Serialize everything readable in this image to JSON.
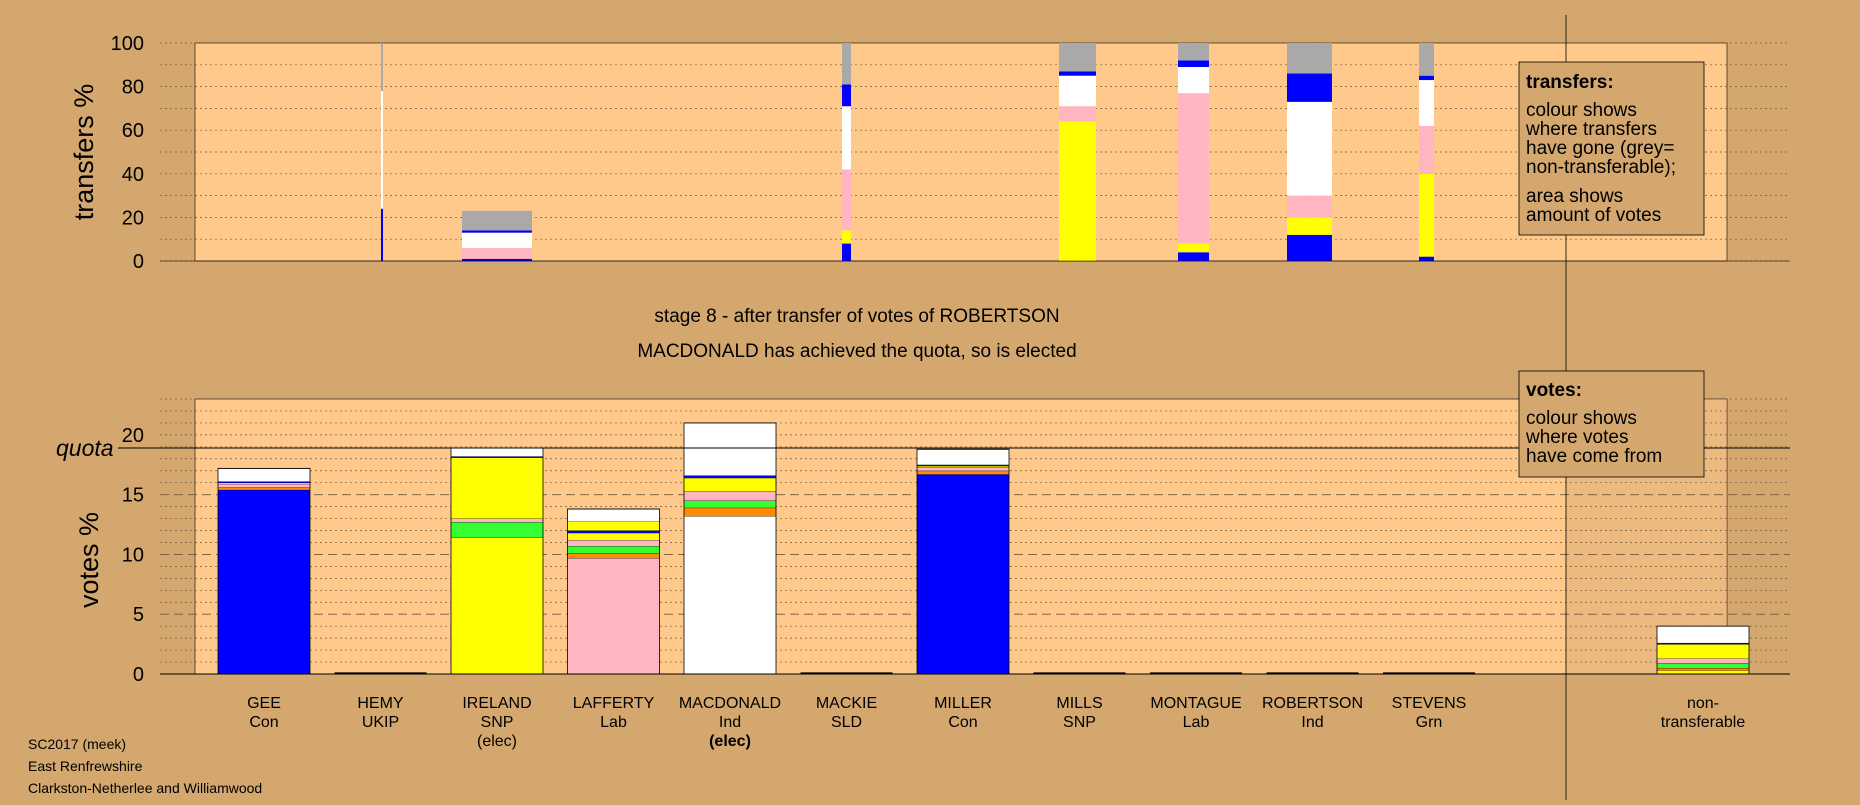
{
  "chart_data": [
    {
      "type": "bar",
      "subtype": "stacked",
      "ylabel": "transfers %",
      "ylim": [
        0,
        100
      ],
      "yticks": [
        0,
        20,
        40,
        60,
        80,
        100
      ],
      "legend": {
        "placement": "top-right",
        "title": "transfers:",
        "lines": [
          "colour shows",
          "where transfers",
          "have gone (grey=",
          "non-transferable);",
          "area shows",
          "amount of votes"
        ]
      },
      "columns": [
        {
          "segments": [
            {
              "color": "#0000ff",
              "value": 24
            },
            {
              "color": "#ffffff",
              "value": 54
            },
            {
              "color": "#a9a9a9",
              "value": 22
            }
          ]
        },
        {
          "segments": [
            {
              "color": "#0000ff",
              "value": 1
            },
            {
              "color": "#ffb6c1",
              "value": 5
            },
            {
              "color": "#ffffff",
              "value": 7
            },
            {
              "color": "#0000ff",
              "value": 1
            },
            {
              "color": "#a9a9a9",
              "value": 9
            }
          ]
        },
        {
          "segments": [
            {
              "color": "#0000ff",
              "value": 8
            },
            {
              "color": "#ffff00",
              "value": 6
            },
            {
              "color": "#ffb6c1",
              "value": 28
            },
            {
              "color": "#ffffff",
              "value": 29
            },
            {
              "color": "#0000ff",
              "value": 10
            },
            {
              "color": "#a9a9a9",
              "value": 19
            }
          ]
        },
        {
          "segments": [
            {
              "color": "#ffff00",
              "value": 64
            },
            {
              "color": "#ffb6c1",
              "value": 7
            },
            {
              "color": "#ffffff",
              "value": 14
            },
            {
              "color": "#0000ff",
              "value": 2
            },
            {
              "color": "#a9a9a9",
              "value": 13
            }
          ]
        },
        {
          "segments": [
            {
              "color": "#0000ff",
              "value": 4
            },
            {
              "color": "#ffff00",
              "value": 4
            },
            {
              "color": "#ffb6c1",
              "value": 69
            },
            {
              "color": "#ffffff",
              "value": 12
            },
            {
              "color": "#0000ff",
              "value": 3
            },
            {
              "color": "#a9a9a9",
              "value": 8
            }
          ]
        },
        {
          "segments": [
            {
              "color": "#0000ff",
              "value": 12
            },
            {
              "color": "#ffff00",
              "value": 8
            },
            {
              "color": "#ffb6c1",
              "value": 10
            },
            {
              "color": "#ffffff",
              "value": 43
            },
            {
              "color": "#0000ff",
              "value": 13
            },
            {
              "color": "#a9a9a9",
              "value": 14
            }
          ]
        },
        {
          "segments": [
            {
              "color": "#0000ff",
              "value": 2
            },
            {
              "color": "#ffff00",
              "value": 38
            },
            {
              "color": "#ffb6c1",
              "value": 22
            },
            {
              "color": "#ffffff",
              "value": 21
            },
            {
              "color": "#0000ff",
              "value": 2
            },
            {
              "color": "#a9a9a9",
              "value": 15
            }
          ]
        }
      ]
    },
    {
      "type": "bar",
      "subtype": "stacked",
      "ylabel": "votes %",
      "ylim": [
        0,
        23
      ],
      "yticks": [
        0,
        5,
        10,
        15,
        20
      ],
      "quota": 18.9,
      "quota_label": "quota",
      "legend": {
        "placement": "top-right",
        "title": "votes:",
        "lines": [
          "colour shows",
          "where votes",
          "have come from"
        ]
      },
      "categories": [
        {
          "name": "GEE",
          "party": "Con",
          "status": ""
        },
        {
          "name": "HEMY",
          "party": "UKIP",
          "status": ""
        },
        {
          "name": "IRELAND",
          "party": "SNP",
          "status": "(elec)"
        },
        {
          "name": "LAFFERTY",
          "party": "Lab",
          "status": ""
        },
        {
          "name": "MACDONALD",
          "party": "Ind",
          "status": "(elec)"
        },
        {
          "name": "MACKIE",
          "party": "SLD",
          "status": ""
        },
        {
          "name": "MILLER",
          "party": "Con",
          "status": ""
        },
        {
          "name": "MILLS",
          "party": "SNP",
          "status": ""
        },
        {
          "name": "MONTAGUE",
          "party": "Lab",
          "status": ""
        },
        {
          "name": "ROBERTSON",
          "party": "Ind",
          "status": ""
        },
        {
          "name": "STEVENS",
          "party": "Grn",
          "status": ""
        },
        {
          "name": "non-",
          "party": "transferable",
          "status": ""
        }
      ],
      "series": [
        {
          "values": [
            15.4,
            0,
            0,
            0,
            0,
            0,
            16.7,
            0,
            0,
            0,
            0,
            0
          ],
          "color": "#0000ff"
        },
        {
          "values": [
            0,
            0,
            11.4,
            0,
            0,
            0,
            0,
            0,
            0,
            0,
            0,
            0.3
          ],
          "color": "#ffff00"
        },
        {
          "values": [
            0,
            0,
            0,
            9.7,
            0,
            0,
            0,
            0,
            0,
            0,
            0,
            0
          ],
          "color": "#ffb6c1"
        },
        {
          "values": [
            0,
            0,
            0,
            0,
            13.2,
            0,
            0,
            0,
            0,
            0,
            0,
            0
          ],
          "color": "#ffffff"
        },
        {
          "values": [
            0.2,
            0,
            0,
            0.4,
            0.7,
            0,
            0.3,
            0,
            0,
            0,
            0,
            0.2
          ],
          "color": "#ff8c00"
        },
        {
          "values": [
            0,
            0,
            1.3,
            0.6,
            0.6,
            0,
            0,
            0,
            0,
            0,
            0,
            0.4
          ],
          "color": "#33ff33"
        },
        {
          "values": [
            0.3,
            0,
            0.3,
            0.5,
            0.8,
            0,
            0.3,
            0,
            0,
            0,
            0,
            0.4
          ],
          "color": "#ffb6c1"
        },
        {
          "values": [
            0.1,
            0,
            5.1,
            0.6,
            1.1,
            0,
            0.1,
            0,
            0,
            0,
            0,
            1.2
          ],
          "color": "#ffff00"
        },
        {
          "values": [
            0.1,
            0,
            0.1,
            0.2,
            0.2,
            0,
            0.1,
            0,
            0,
            0,
            0,
            0.1
          ],
          "color": "#0000ff"
        },
        {
          "values": [
            0,
            0,
            0,
            0.8,
            0,
            0,
            0,
            0,
            0,
            0,
            0,
            0
          ],
          "color": "#ffff00"
        },
        {
          "values": [
            1.1,
            0,
            0.7,
            1.0,
            4.4,
            0,
            1.3,
            0,
            0,
            0,
            0,
            1.4
          ],
          "color": "#ffffff"
        }
      ]
    }
  ],
  "stage_text": "stage 8 - after transfer of votes of ROBERTSON",
  "elected_text": "MACDONALD has achieved the quota, so is elected",
  "footer": [
    "SC2017 (meek)",
    "East Renfrewshire",
    "Clarkston-Netherlee and Williamwood"
  ],
  "colors": {
    "background": "#d4a76f",
    "plot_area": "#ffc98c",
    "legend_box": "#d4a76f",
    "grey_non_transferable": "#a9a9a9"
  }
}
